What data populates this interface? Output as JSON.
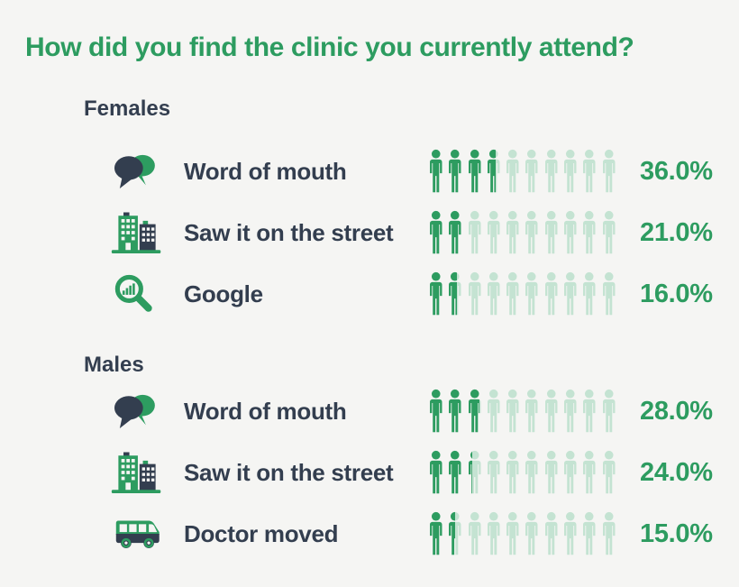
{
  "title": "How did you find the clinic you currently attend?",
  "colors": {
    "green": "#2d9c60",
    "light_green": "#c4e3d2",
    "navy": "#333e4f",
    "background": "#f5f5f3"
  },
  "pictogram": {
    "total_icons": 10,
    "unit_icon": "person-icon",
    "percent_per_icon": 10
  },
  "sections": [
    {
      "heading": "Females",
      "rows": [
        {
          "icon": "speech-bubbles-icon",
          "label": "Word of mouth",
          "percent": "36.0%",
          "value": 36.0,
          "filled_icons": 3.6
        },
        {
          "icon": "buildings-icon",
          "label": "Saw it on the street",
          "percent": "21.0%",
          "value": 21.0,
          "filled_icons": 2.1
        },
        {
          "icon": "magnifier-chart-icon",
          "label": "Google",
          "percent": "16.0%",
          "value": 16.0,
          "filled_icons": 1.6
        }
      ]
    },
    {
      "heading": "Males",
      "rows": [
        {
          "icon": "speech-bubbles-icon",
          "label": "Word of mouth",
          "percent": "28.0%",
          "value": 28.0,
          "filled_icons": 2.8
        },
        {
          "icon": "buildings-icon",
          "label": "Saw it on the street",
          "percent": "24.0%",
          "value": 24.0,
          "filled_icons": 2.4
        },
        {
          "icon": "bus-icon",
          "label": "Doctor moved",
          "percent": "15.0%",
          "value": 15.0,
          "filled_icons": 1.5
        }
      ]
    }
  ],
  "chart_data": {
    "type": "bar",
    "style": "pictogram",
    "title": "How did you find the clinic you currently attend?",
    "unit": "percent",
    "icons_per_row": 10,
    "percent_per_icon": 10,
    "groups": [
      {
        "name": "Females",
        "categories": [
          "Word of mouth",
          "Saw it on the street",
          "Google"
        ],
        "values": [
          36.0,
          21.0,
          16.0
        ]
      },
      {
        "name": "Males",
        "categories": [
          "Word of mouth",
          "Saw it on the street",
          "Doctor moved"
        ],
        "values": [
          28.0,
          24.0,
          15.0
        ]
      }
    ]
  }
}
